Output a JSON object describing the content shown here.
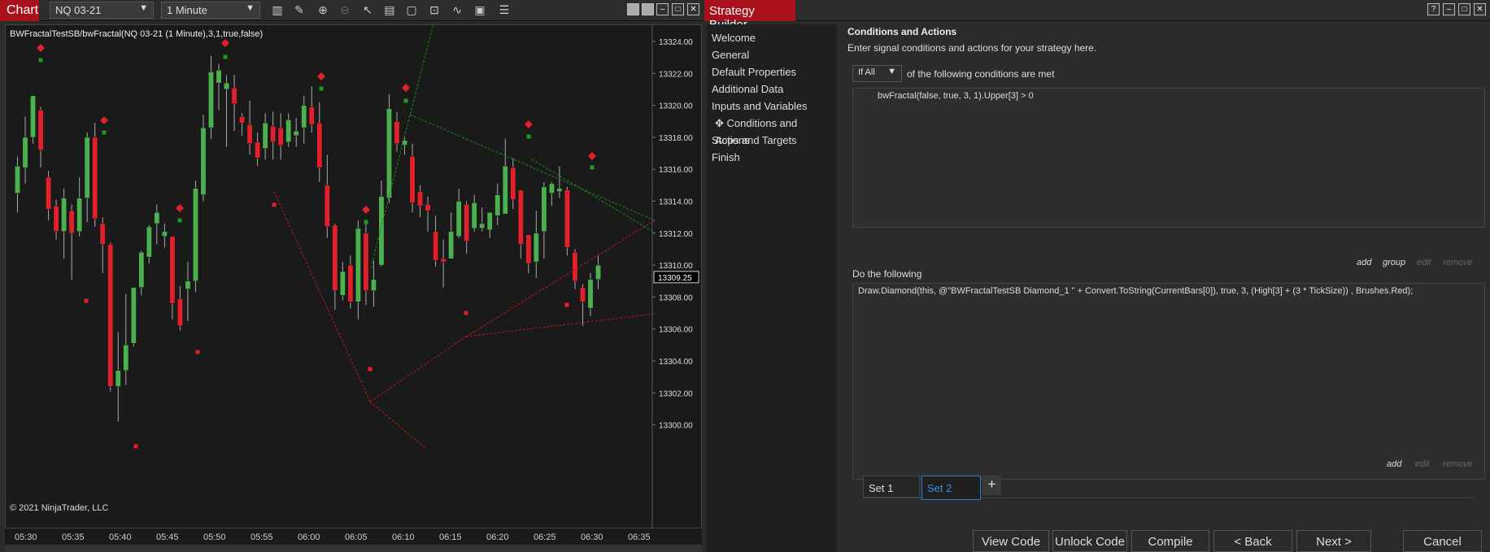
{
  "toolbar": {
    "chart_tab": "Chart",
    "instrument": "NQ 03-21",
    "interval": "1 Minute"
  },
  "builder": {
    "title": "Strategy Builder"
  },
  "chart": {
    "label": "BWFractalTestSB/bwFractal(NQ 03-21 (1 Minute),3,1,true,false)",
    "copyright": "© 2021 NinjaTrader, LLC",
    "price_ticks": [
      "13324.00",
      "13322.00",
      "13320.00",
      "13318.00",
      "13316.00",
      "13314.00",
      "13312.00",
      "13310.00",
      "13308.00",
      "13306.00",
      "13304.00",
      "13302.00",
      "13300.00"
    ],
    "last_price": "13309.25",
    "time_ticks": [
      "05:30",
      "05:35",
      "05:40",
      "05:45",
      "05:50",
      "05:55",
      "06:00",
      "06:05",
      "06:10",
      "06:15",
      "06:20",
      "06:25",
      "06:30",
      "06:35"
    ],
    "up_color": "#4caf50",
    "down_color": "#e0202a"
  },
  "nav": {
    "items": [
      "Welcome",
      "General",
      "Default Properties",
      "Additional Data",
      "Inputs and Variables",
      "Conditions and Actions",
      "Stops and Targets",
      "Finish"
    ]
  },
  "main": {
    "heading": "Conditions and Actions",
    "description": "Enter signal conditions and actions for your strategy here.",
    "condition_mode": "If All",
    "condition_text": "of the following conditions are met",
    "condition": "bwFractal(false, true, 3, 1).Upper[3] > 0",
    "cond_links": {
      "add": "add",
      "group": "group",
      "edit": "edit",
      "remove": "remove"
    },
    "do_label": "Do the following",
    "action": "Draw.Diamond(this, @\"BWFractalTestSB Diamond_1 \" + Convert.ToString(CurrentBars[0]), true, 3, (High[3] + (3 * TickSize)) , Brushes.Red);",
    "act_links": {
      "add": "add",
      "edit": "edit",
      "remove": "remove"
    },
    "sets": [
      "Set 1",
      "Set 2"
    ],
    "add_set": "+"
  },
  "buttons": {
    "view_code": "View Code",
    "unlock_code": "Unlock Code",
    "compile": "Compile",
    "back": "< Back",
    "next": "Next >",
    "cancel": "Cancel"
  }
}
